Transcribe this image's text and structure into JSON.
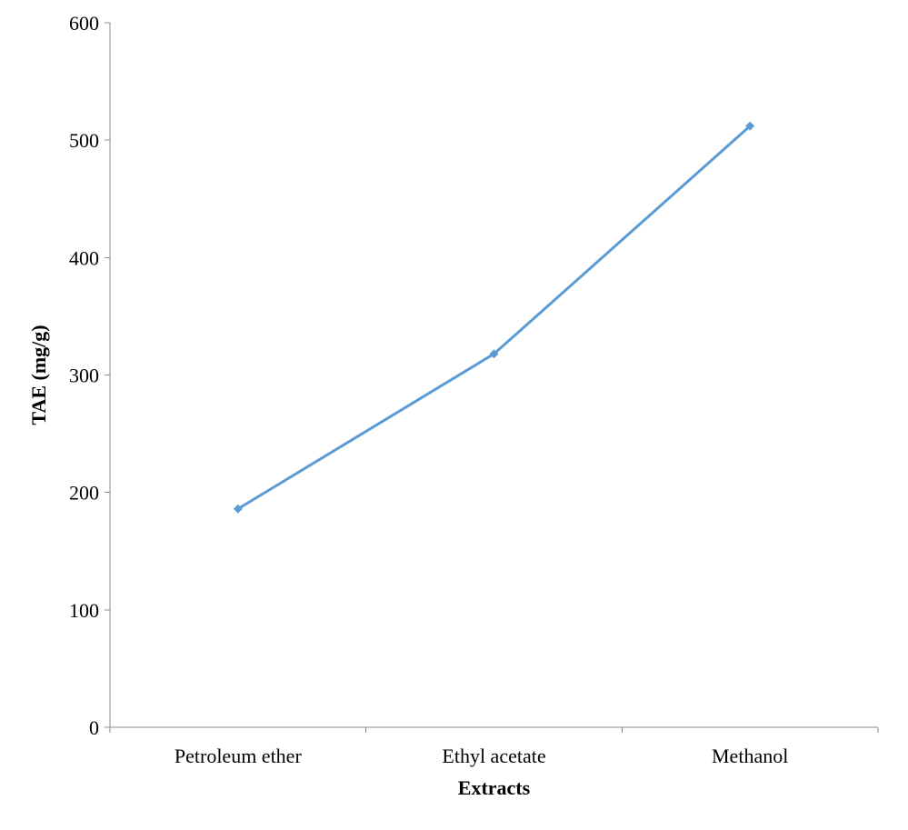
{
  "chart_data": {
    "type": "line",
    "title": "",
    "xlabel": "Extracts",
    "ylabel": "TAE (mg/g)",
    "categories": [
      "Petroleum ether",
      "Ethyl acetate",
      "Methanol"
    ],
    "series": [
      {
        "values": [
          186,
          318,
          512
        ]
      }
    ],
    "ylim": [
      0,
      600
    ],
    "yticks": [
      0,
      100,
      200,
      300,
      400,
      500,
      600
    ],
    "grid": false,
    "legend": "none",
    "colors": {
      "line": "#5b9bd5",
      "axis": "#8c8c8c",
      "text": "#000000"
    }
  }
}
